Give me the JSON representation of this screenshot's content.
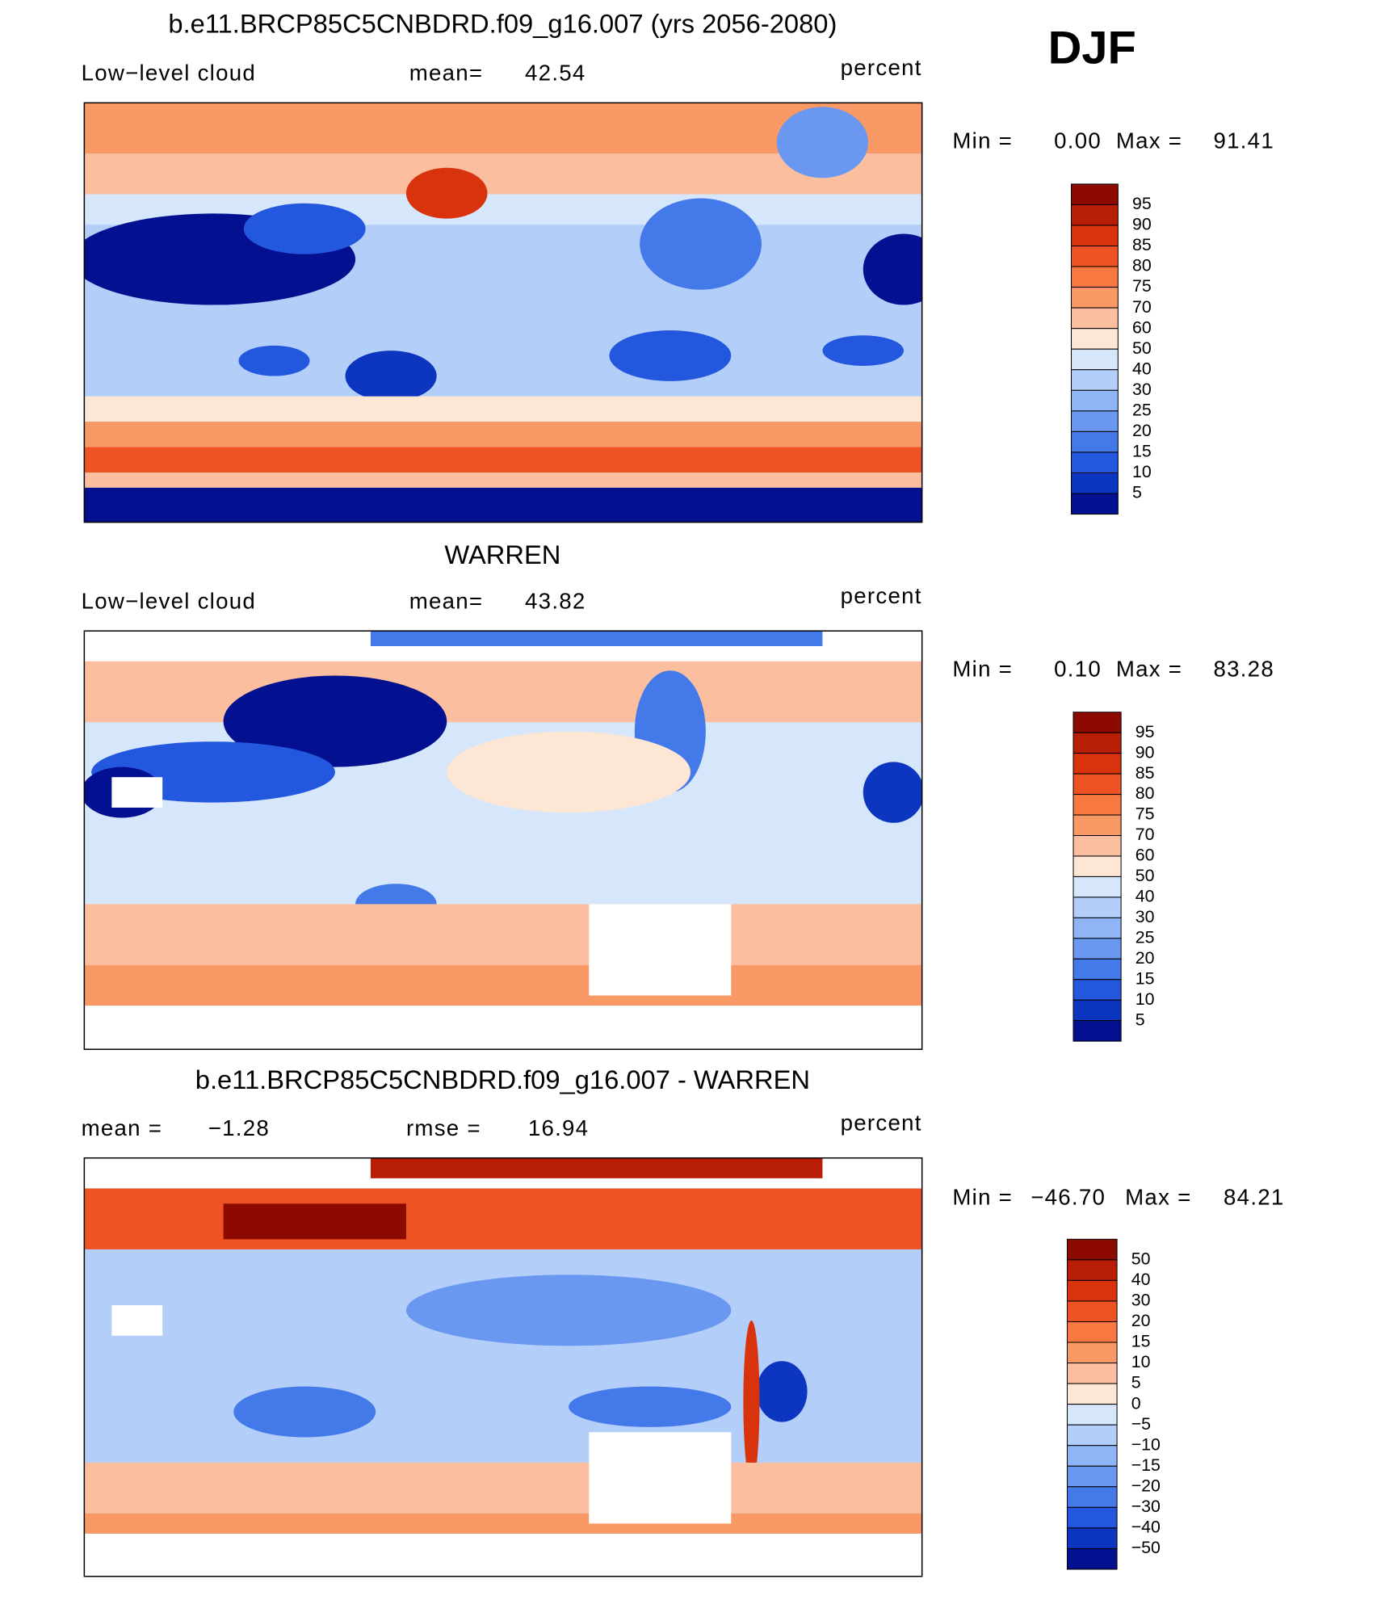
{
  "header": {
    "season": "DJF"
  },
  "panels": [
    {
      "title": "b.e11.BRCP85C5CNBDRD.f09_g16.007 (yrs 2056-2080)",
      "variable": "Low−level cloud",
      "stat_label": "mean=",
      "stat_value": "42.54",
      "units": "percent",
      "min_label": "Min =",
      "min_value": "0.00",
      "max_label": "Max =",
      "max_value": "91.41",
      "colorbar": {
        "labels": [
          "95",
          "90",
          "85",
          "80",
          "75",
          "70",
          "60",
          "50",
          "40",
          "30",
          "25",
          "20",
          "15",
          "10",
          "5"
        ],
        "colors": [
          "#8c0a00",
          "#b81d05",
          "#d9330e",
          "#ee5323",
          "#f77840",
          "#f99966",
          "#fbbfa0",
          "#fde6d4",
          "#d6e6fb",
          "#b3cff9",
          "#8fb5f6",
          "#6a98f1",
          "#4479ea",
          "#2257de",
          "#0c35c0",
          "#03108f"
        ]
      }
    },
    {
      "title": "WARREN",
      "variable": "Low−level cloud",
      "stat_label": "mean=",
      "stat_value": "43.82",
      "units": "percent",
      "min_label": "Min =",
      "min_value": "0.10",
      "max_label": "Max =",
      "max_value": "83.28",
      "colorbar": {
        "labels": [
          "95",
          "90",
          "85",
          "80",
          "75",
          "70",
          "60",
          "50",
          "40",
          "30",
          "25",
          "20",
          "15",
          "10",
          "5"
        ],
        "colors": [
          "#8c0a00",
          "#b81d05",
          "#d9330e",
          "#ee5323",
          "#f77840",
          "#f99966",
          "#fbbfa0",
          "#fde6d4",
          "#d6e6fb",
          "#b3cff9",
          "#8fb5f6",
          "#6a98f1",
          "#4479ea",
          "#2257de",
          "#0c35c0",
          "#03108f"
        ]
      }
    },
    {
      "title": "b.e11.BRCP85C5CNBDRD.f09_g16.007 - WARREN",
      "stat_label": "mean =",
      "stat_value": "−1.28",
      "stat2_label": "rmse =",
      "stat2_value": "16.94",
      "units": "percent",
      "min_label": "Min =",
      "min_value": "−46.70",
      "max_label": "Max =",
      "max_value": "84.21",
      "colorbar": {
        "labels": [
          "50",
          "40",
          "30",
          "20",
          "15",
          "10",
          "5",
          "0",
          "−5",
          "−10",
          "−15",
          "−20",
          "−30",
          "−40",
          "−50"
        ],
        "colors": [
          "#8c0a00",
          "#b81d05",
          "#d9330e",
          "#ee5323",
          "#f77840",
          "#f99966",
          "#fbbfa0",
          "#fde6d4",
          "#d6e6fb",
          "#b3cff9",
          "#8fb5f6",
          "#6a98f1",
          "#4479ea",
          "#2257de",
          "#0c35c0",
          "#03108f"
        ]
      }
    }
  ]
}
